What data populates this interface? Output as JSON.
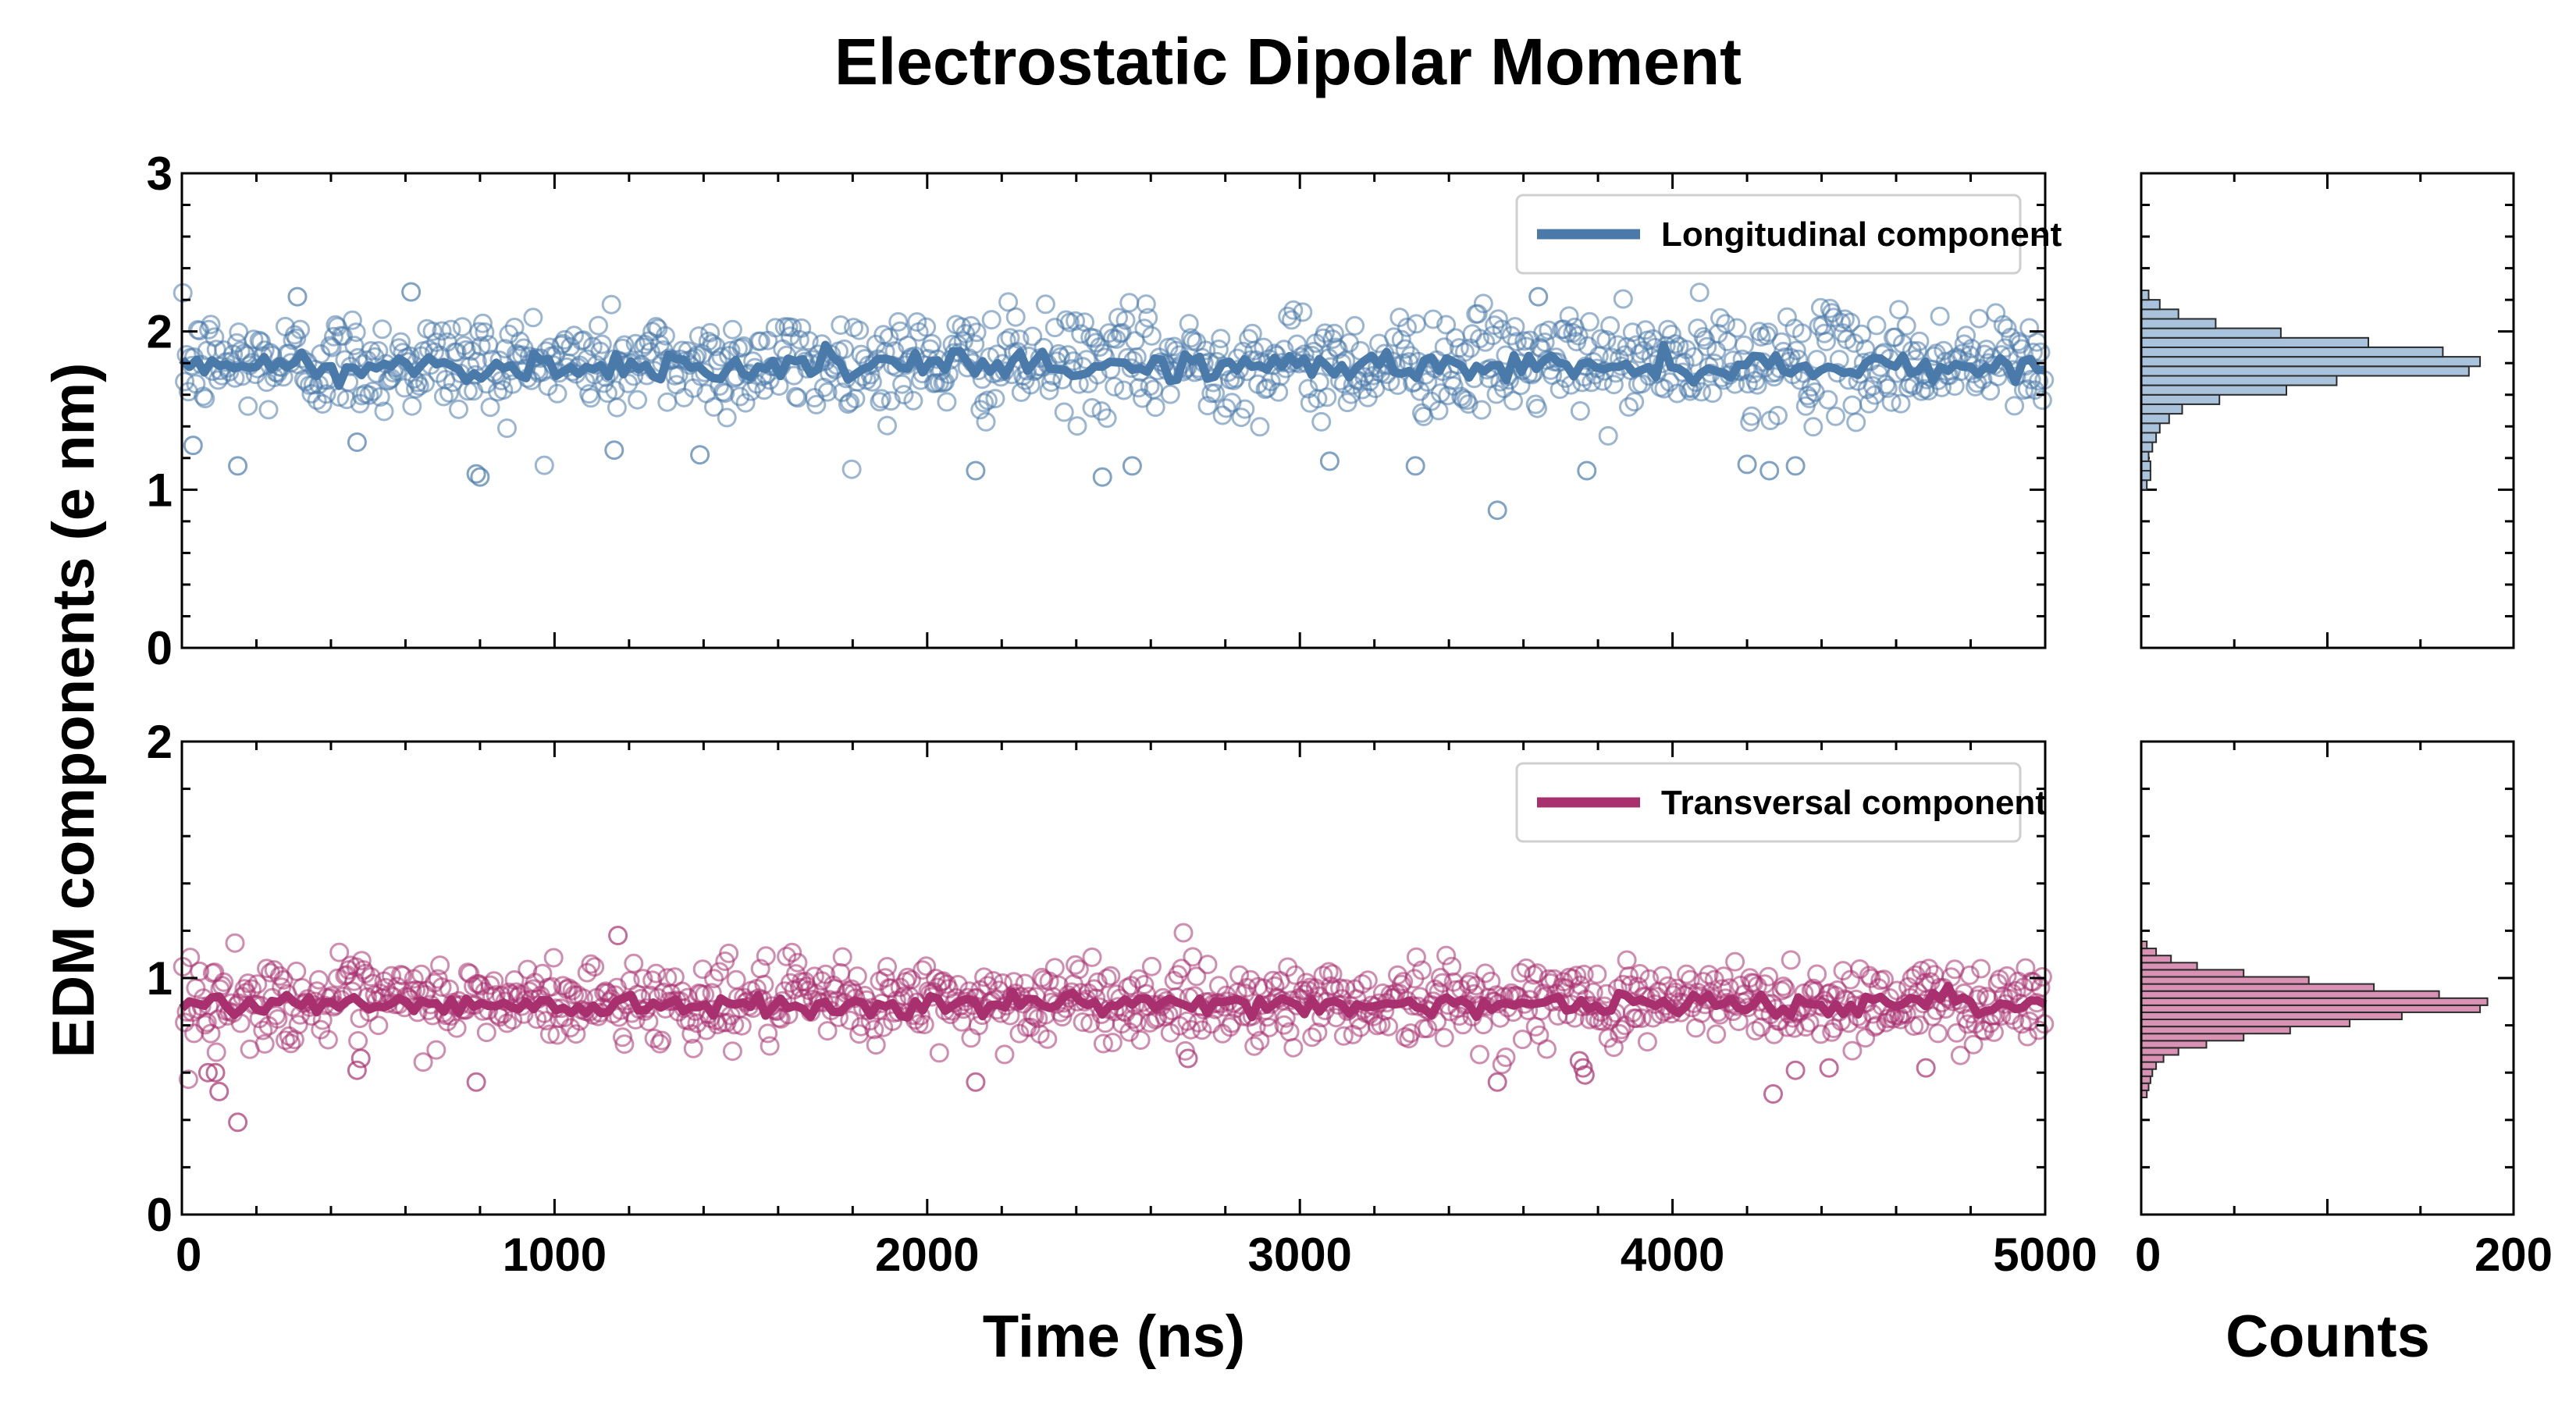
{
  "chart_data": {
    "title": "Electrostatic Dipolar Moment",
    "ylabel": "EDM components (e nm)",
    "xlabel": "Time (ns)",
    "hist_xlabel": "Counts",
    "colors": {
      "longitudinal": "#4a7aaa",
      "longitudinal_hist": "#a9c3dc",
      "transversal": "#a8306f",
      "transversal_hist": "#d992b4",
      "hist_edge": "#2b2b2b"
    },
    "panels": [
      {
        "name": "longitudinal",
        "type": "scatter+line",
        "legend": "Longitudinal component",
        "legend_position": "top-right",
        "xlim": [
          0,
          5000
        ],
        "ylim": [
          0,
          3
        ],
        "yticks": [
          "0",
          "1",
          "2",
          "3"
        ],
        "n_points": 1000,
        "mean": 1.8,
        "spread": 0.16,
        "line_mean": 1.78,
        "outliers": [
          {
            "x": 30,
            "y": 1.28
          },
          {
            "x": 150,
            "y": 1.15
          },
          {
            "x": 310,
            "y": 2.22
          },
          {
            "x": 470,
            "y": 1.3
          },
          {
            "x": 615,
            "y": 2.25
          },
          {
            "x": 790,
            "y": 1.1
          },
          {
            "x": 800,
            "y": 1.08
          },
          {
            "x": 1160,
            "y": 1.25
          },
          {
            "x": 1390,
            "y": 1.22
          },
          {
            "x": 2130,
            "y": 1.12
          },
          {
            "x": 2470,
            "y": 1.08
          },
          {
            "x": 2550,
            "y": 1.15
          },
          {
            "x": 3080,
            "y": 1.18
          },
          {
            "x": 3310,
            "y": 1.15
          },
          {
            "x": 3530,
            "y": 0.87
          },
          {
            "x": 3640,
            "y": 2.22
          },
          {
            "x": 3770,
            "y": 1.12
          },
          {
            "x": 4200,
            "y": 1.16
          },
          {
            "x": 4260,
            "y": 1.12
          },
          {
            "x": 4330,
            "y": 1.15
          }
        ],
        "histogram": {
          "bins": [
            {
              "y": 1.03,
              "count": 3
            },
            {
              "y": 1.09,
              "count": 5
            },
            {
              "y": 1.15,
              "count": 5
            },
            {
              "y": 1.21,
              "count": 4
            },
            {
              "y": 1.27,
              "count": 6
            },
            {
              "y": 1.33,
              "count": 8
            },
            {
              "y": 1.39,
              "count": 10
            },
            {
              "y": 1.45,
              "count": 15
            },
            {
              "y": 1.51,
              "count": 22
            },
            {
              "y": 1.57,
              "count": 42
            },
            {
              "y": 1.63,
              "count": 78
            },
            {
              "y": 1.69,
              "count": 105
            },
            {
              "y": 1.75,
              "count": 176
            },
            {
              "y": 1.81,
              "count": 182
            },
            {
              "y": 1.87,
              "count": 162
            },
            {
              "y": 1.93,
              "count": 122
            },
            {
              "y": 1.99,
              "count": 75
            },
            {
              "y": 2.05,
              "count": 40
            },
            {
              "y": 2.11,
              "count": 20
            },
            {
              "y": 2.17,
              "count": 10
            },
            {
              "y": 2.23,
              "count": 4
            }
          ],
          "bin_width": 0.06
        }
      },
      {
        "name": "transversal",
        "type": "scatter+line",
        "legend": "Transversal component",
        "legend_position": "top-right",
        "xlim": [
          0,
          5000
        ],
        "ylim": [
          0,
          2
        ],
        "yticks": [
          "0",
          "1",
          "2"
        ],
        "n_points": 1000,
        "mean": 0.9,
        "spread": 0.085,
        "line_mean": 0.89,
        "outliers": [
          {
            "x": 70,
            "y": 0.6
          },
          {
            "x": 90,
            "y": 0.6
          },
          {
            "x": 100,
            "y": 0.52
          },
          {
            "x": 150,
            "y": 0.39
          },
          {
            "x": 470,
            "y": 0.61
          },
          {
            "x": 480,
            "y": 0.66
          },
          {
            "x": 790,
            "y": 0.56
          },
          {
            "x": 1170,
            "y": 1.18
          },
          {
            "x": 2130,
            "y": 0.56
          },
          {
            "x": 2700,
            "y": 0.66
          },
          {
            "x": 3530,
            "y": 0.56
          },
          {
            "x": 3750,
            "y": 0.65
          },
          {
            "x": 3760,
            "y": 0.62
          },
          {
            "x": 3765,
            "y": 0.59
          },
          {
            "x": 4270,
            "y": 0.51
          },
          {
            "x": 4330,
            "y": 0.61
          },
          {
            "x": 4420,
            "y": 0.62
          },
          {
            "x": 4680,
            "y": 0.62
          }
        ],
        "histogram": {
          "bins": [
            {
              "y": 0.51,
              "count": 3
            },
            {
              "y": 0.54,
              "count": 4
            },
            {
              "y": 0.57,
              "count": 5
            },
            {
              "y": 0.6,
              "count": 6
            },
            {
              "y": 0.63,
              "count": 8
            },
            {
              "y": 0.66,
              "count": 12
            },
            {
              "y": 0.69,
              "count": 20
            },
            {
              "y": 0.72,
              "count": 35
            },
            {
              "y": 0.75,
              "count": 55
            },
            {
              "y": 0.78,
              "count": 80
            },
            {
              "y": 0.81,
              "count": 112
            },
            {
              "y": 0.84,
              "count": 140
            },
            {
              "y": 0.87,
              "count": 182
            },
            {
              "y": 0.9,
              "count": 186
            },
            {
              "y": 0.93,
              "count": 160
            },
            {
              "y": 0.96,
              "count": 125
            },
            {
              "y": 0.99,
              "count": 90
            },
            {
              "y": 1.02,
              "count": 55
            },
            {
              "y": 1.05,
              "count": 30
            },
            {
              "y": 1.08,
              "count": 16
            },
            {
              "y": 1.11,
              "count": 8
            },
            {
              "y": 1.14,
              "count": 3
            }
          ],
          "bin_width": 0.03
        }
      }
    ],
    "xticks": [
      "0",
      "1000",
      "2000",
      "3000",
      "4000",
      "5000"
    ],
    "hist_xlim": [
      0,
      200
    ],
    "hist_xticks": [
      "0",
      "200"
    ]
  }
}
